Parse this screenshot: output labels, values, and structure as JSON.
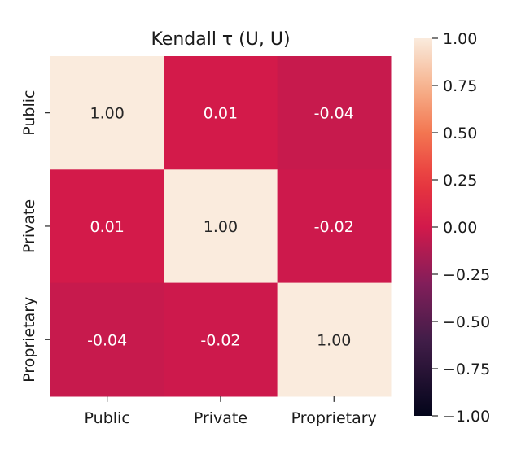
{
  "chart_data": {
    "type": "heatmap",
    "title": "Kendall τ (U, U)",
    "xlabel": "",
    "ylabel": "",
    "row_labels": [
      "Public",
      "Private",
      "Proprietary"
    ],
    "col_labels": [
      "Public",
      "Private",
      "Proprietary"
    ],
    "values": [
      [
        1.0,
        0.01,
        -0.04
      ],
      [
        0.01,
        1.0,
        -0.02
      ],
      [
        -0.04,
        -0.02,
        1.0
      ]
    ],
    "cell_labels": [
      [
        "1.00",
        "0.01",
        "-0.04"
      ],
      [
        "0.01",
        "1.00",
        "-0.02"
      ],
      [
        "-0.04",
        "-0.02",
        "1.00"
      ]
    ],
    "vmin": -1.0,
    "vmax": 1.0,
    "colorbar": {
      "ticks": [
        1.0,
        0.75,
        0.5,
        0.25,
        0.0,
        -0.25,
        -0.5,
        -0.75,
        -1.0
      ],
      "tick_labels": [
        "1.00",
        "0.75",
        "0.50",
        "0.25",
        "0.00",
        "−0.25",
        "−0.50",
        "−0.75",
        "−1.00"
      ]
    },
    "colormap": "rocket",
    "colors": {
      "high": "#faebdd",
      "low": "#03051a"
    }
  }
}
